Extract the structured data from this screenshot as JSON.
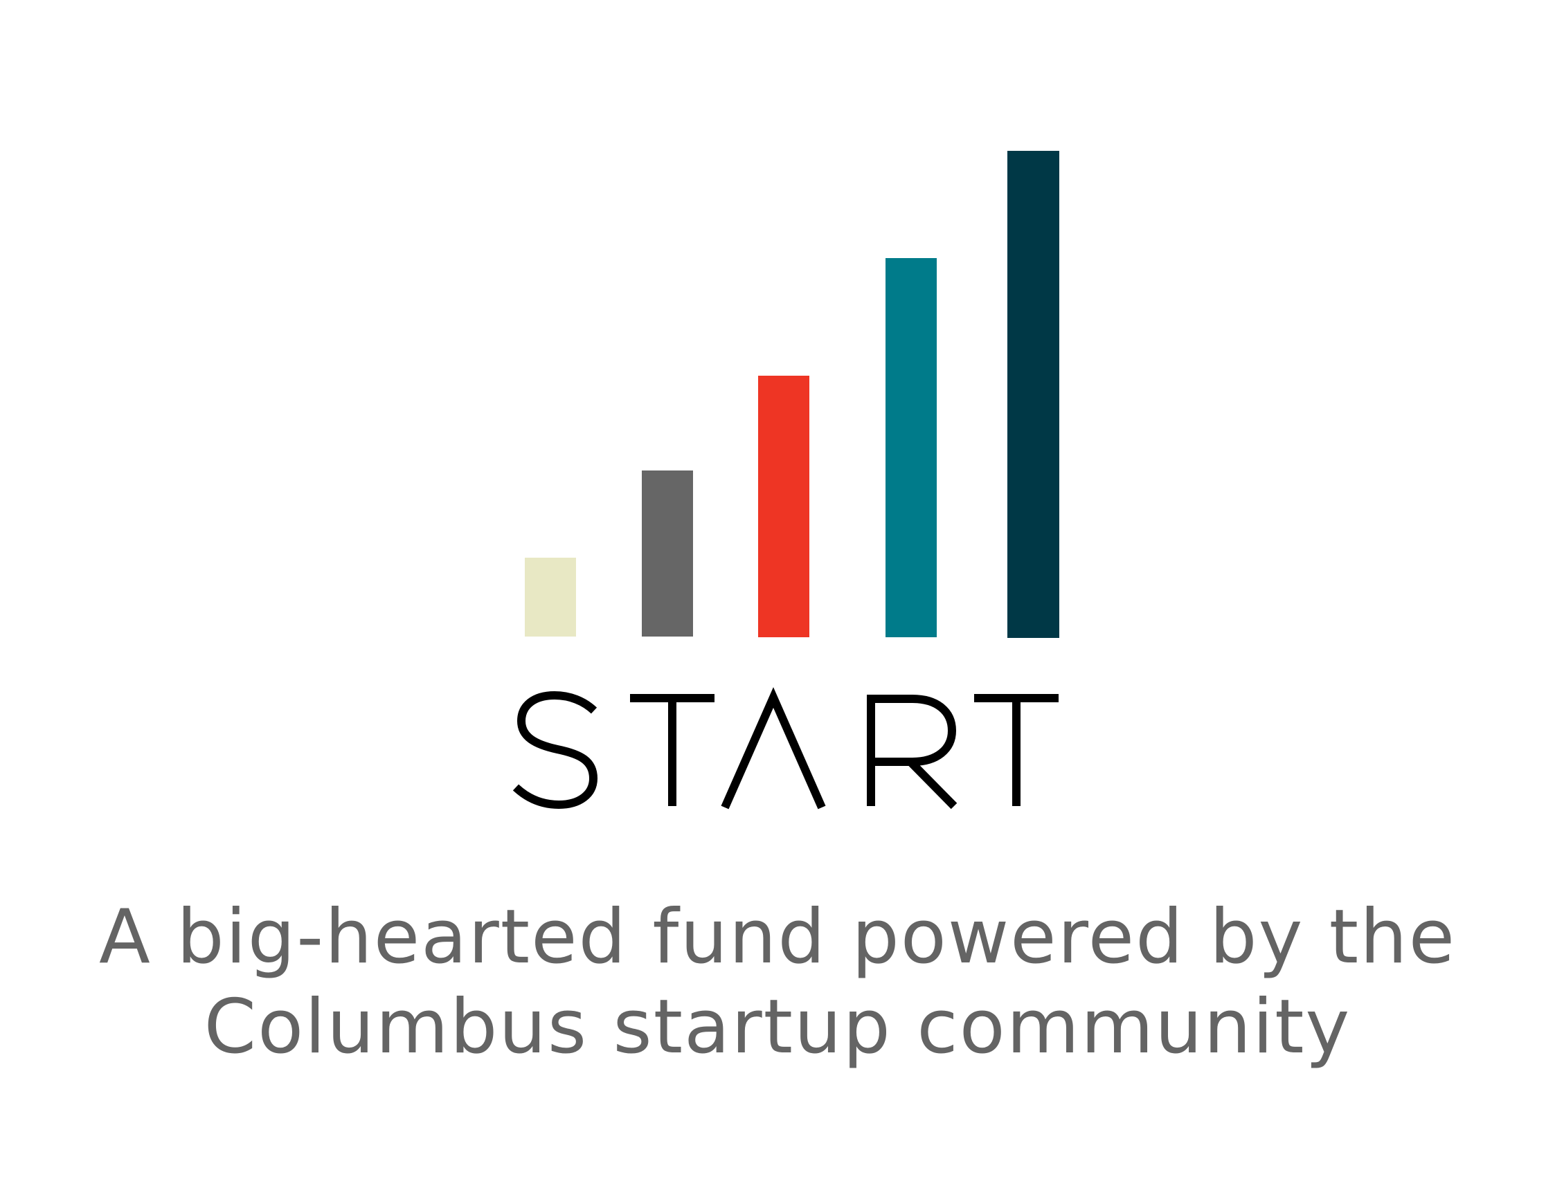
{
  "logo": {
    "icon": "ascending-bars-icon",
    "wordmark": "START",
    "colors": {
      "bar_1": "#e8e8c4",
      "bar_2": "#666666",
      "bar_3": "#ee3524",
      "bar_4": "#007b8a",
      "bar_5": "#003846",
      "wordmark": "#000000"
    }
  },
  "tagline": {
    "line_1": "A big-hearted fund powered by the",
    "line_2": "Columbus startup community"
  }
}
